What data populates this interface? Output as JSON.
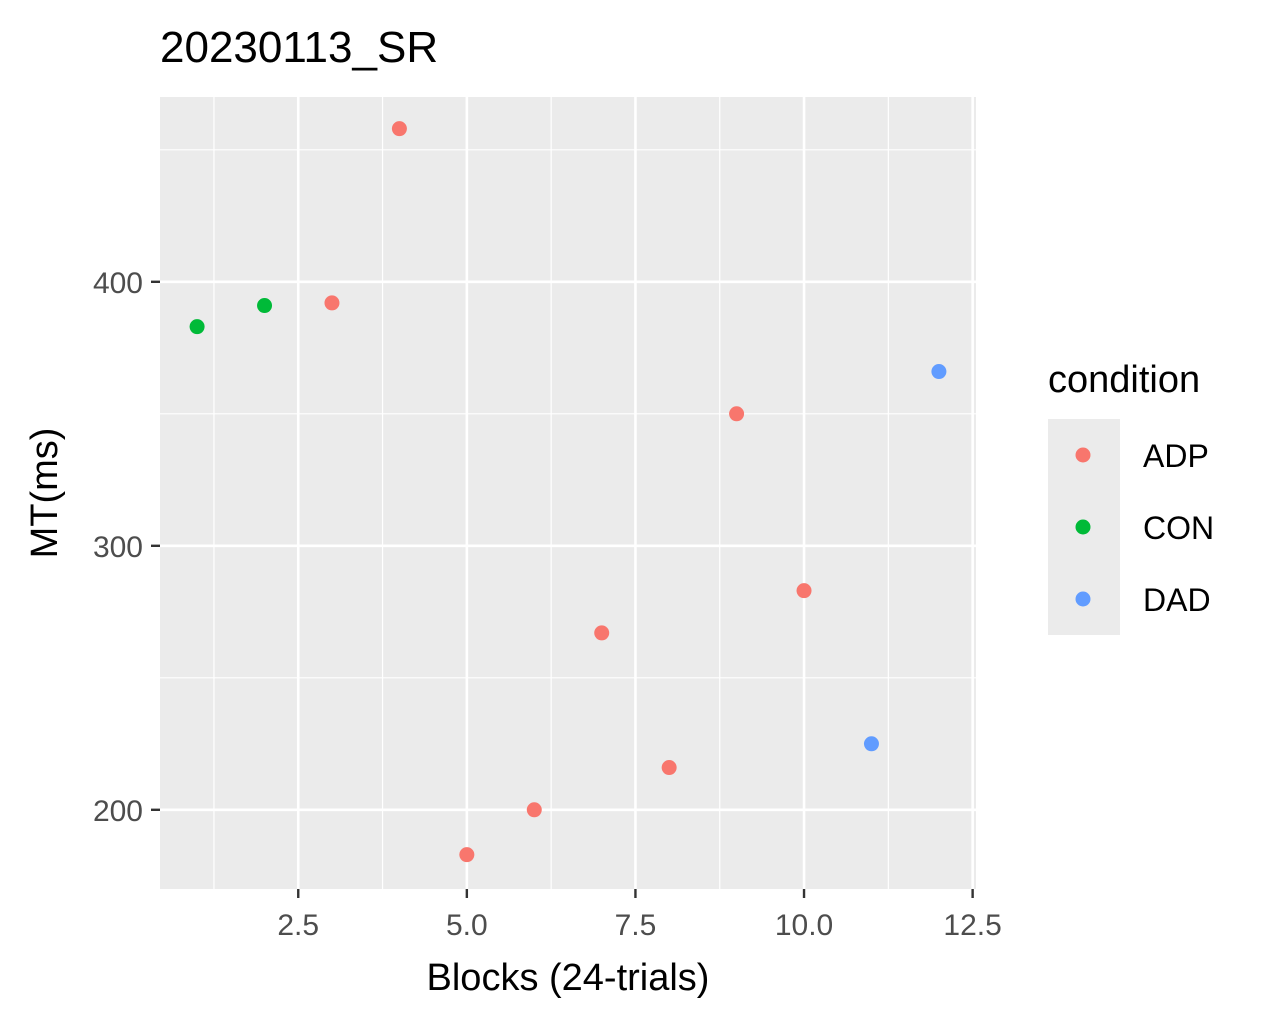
{
  "chart_data": {
    "type": "scatter",
    "title": "20230113_SR",
    "xlabel": "Blocks (24-trials)",
    "ylabel": "MT(ms)",
    "xlim": [
      0.45,
      12.55
    ],
    "ylim": [
      170,
      470
    ],
    "x_major_ticks": [
      2.5,
      5.0,
      7.5,
      10.0,
      12.5
    ],
    "x_tick_labels": [
      "2.5",
      "5.0",
      "7.5",
      "10.0",
      "12.5"
    ],
    "x_minor_gridlines": [
      1.25,
      3.75,
      6.25,
      8.75,
      11.25
    ],
    "y_major_ticks": [
      200,
      300,
      400
    ],
    "y_tick_labels": [
      "200",
      "300",
      "400"
    ],
    "y_minor_gridlines": [
      250,
      350,
      450
    ],
    "grid": true,
    "legend": {
      "title": "condition",
      "placement": "right",
      "entries": [
        {
          "label": "ADP",
          "color": "#F8766D"
        },
        {
          "label": "CON",
          "color": "#00BA38"
        },
        {
          "label": "DAD",
          "color": "#619CFF"
        }
      ]
    },
    "series": [
      {
        "name": "ADP",
        "color": "#F8766D",
        "points": [
          {
            "x": 3,
            "y": 392
          },
          {
            "x": 4,
            "y": 458
          },
          {
            "x": 5,
            "y": 183
          },
          {
            "x": 6,
            "y": 200
          },
          {
            "x": 7,
            "y": 267
          },
          {
            "x": 8,
            "y": 216
          },
          {
            "x": 9,
            "y": 350
          },
          {
            "x": 10,
            "y": 283
          }
        ]
      },
      {
        "name": "CON",
        "color": "#00BA38",
        "points": [
          {
            "x": 1,
            "y": 383
          },
          {
            "x": 2,
            "y": 391
          }
        ]
      },
      {
        "name": "DAD",
        "color": "#619CFF",
        "points": [
          {
            "x": 11,
            "y": 225
          },
          {
            "x": 12,
            "y": 366
          }
        ]
      }
    ]
  },
  "colors": {
    "panel_background": "#EBEBEB",
    "gridline": "#FFFFFF",
    "tick_label": "#4D4D4D",
    "tick_mark": "#333333"
  }
}
